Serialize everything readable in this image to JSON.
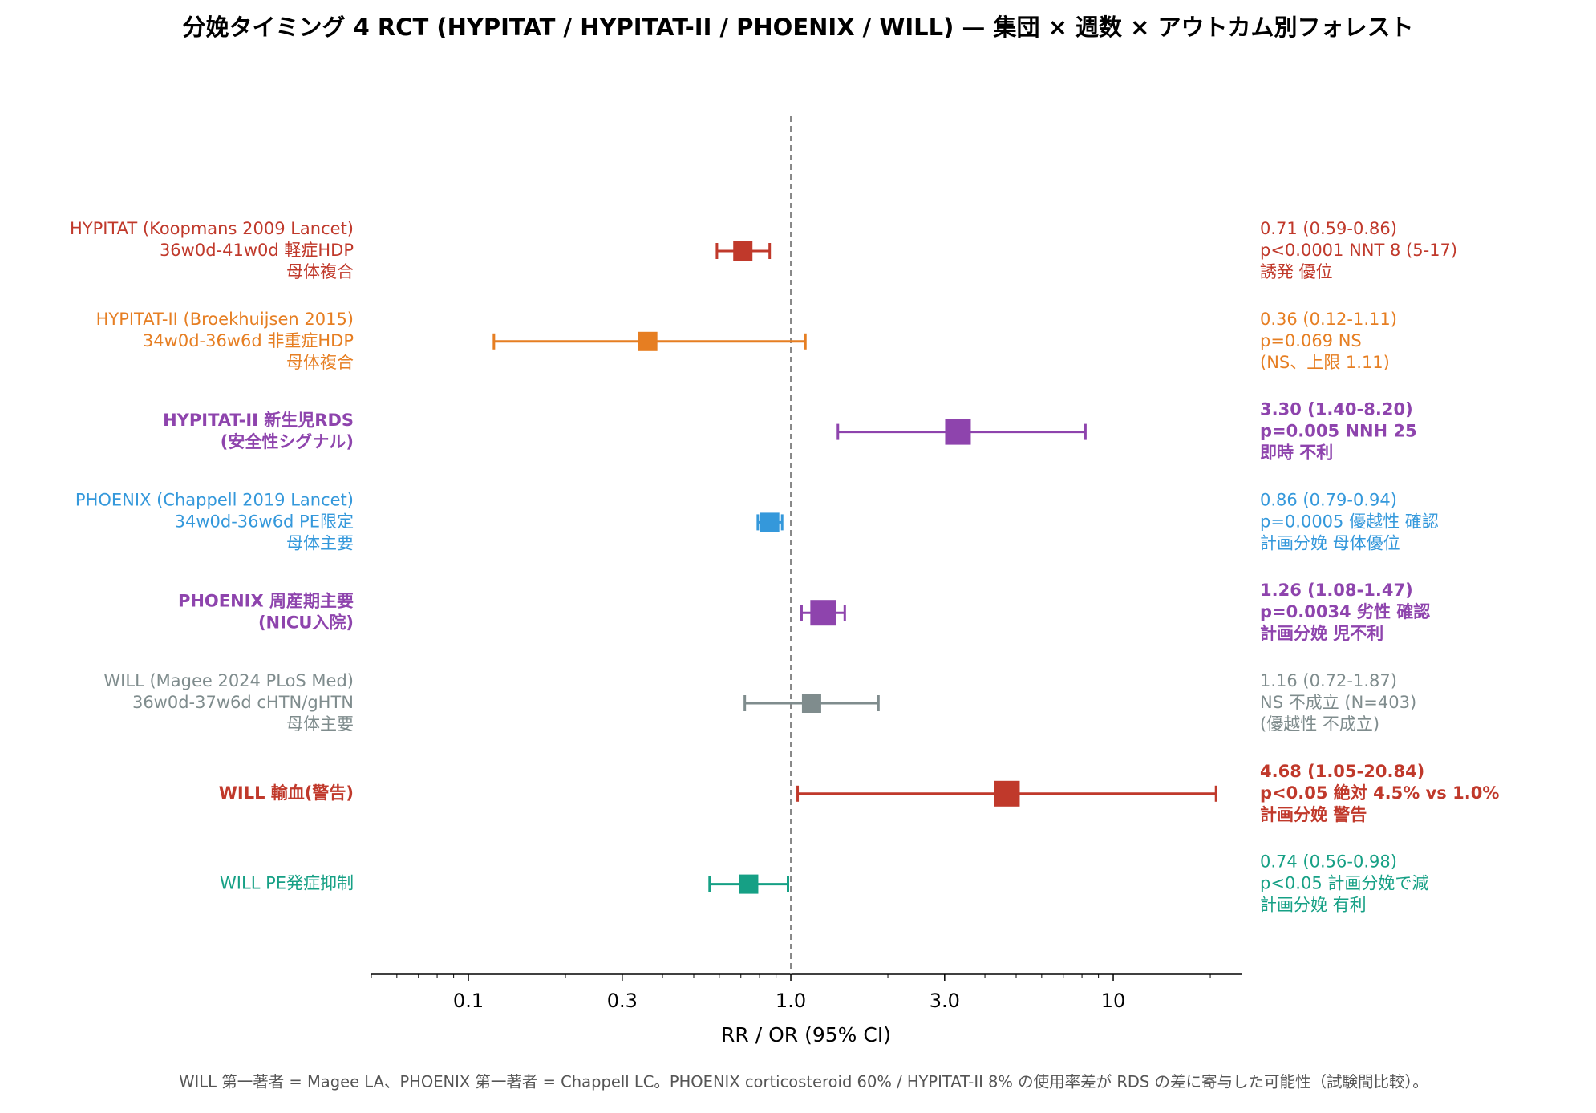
{
  "chart_data": {
    "type": "forest",
    "title": "分娩タイミング 4 RCT (HYPITAT / HYPITAT-II / PHOENIX / WILL) — 集団 × 週数 × アウトカム別フォレスト",
    "x_label": "RR / OR (95% CI)",
    "footnote": "WILL 第一著者 = Magee LA、PHOENIX 第一著者 = Chappell LC。PHOENIX corticosteroid 60% / HYPITAT-II 8% の使用率差が RDS の差に寄与した可能性（試験間比較）。",
    "log_x": true,
    "xlim": [
      0.05,
      25
    ],
    "xticks": [
      0.1,
      0.3,
      {
        "value": 1,
        "label": "1.0"
      },
      {
        "value": 3,
        "label": "3.0"
      },
      10
    ],
    "ref_line": 1,
    "rows": [
      {
        "label": [
          "HYPITAT (Koopmans 2009 Lancet)",
          "36w0d-41w0d 軽症HDP",
          "母体複合"
        ],
        "estimate": 0.71,
        "lo": 0.59,
        "hi": 0.86,
        "color": "#c0392b",
        "emphasis": false,
        "notes": [
          "0.71 (0.59-0.86)",
          "p<0.0001 NNT 8 (5-17)",
          "誘発 優位"
        ]
      },
      {
        "label": [
          "HYPITAT-II (Broekhuijsen 2015)",
          "34w0d-36w6d 非重症HDP",
          "母体複合"
        ],
        "estimate": 0.36,
        "lo": 0.12,
        "hi": 1.11,
        "color": "#e67e22",
        "emphasis": false,
        "notes": [
          "0.36 (0.12-1.11)",
          "p=0.069 NS",
          "(NS、上限 1.11)"
        ]
      },
      {
        "label": [
          "HYPITAT-II 新生児RDS",
          "(安全性シグナル)"
        ],
        "estimate": 3.3,
        "lo": 1.4,
        "hi": 8.2,
        "color": "#8e44ad",
        "emphasis": true,
        "notes": [
          "3.30 (1.40-8.20)",
          "p=0.005 NNH 25",
          "即時 不利"
        ]
      },
      {
        "label": [
          "PHOENIX (Chappell 2019 Lancet)",
          "34w0d-36w6d PE限定",
          "母体主要"
        ],
        "estimate": 0.86,
        "lo": 0.79,
        "hi": 0.94,
        "color": "#3498db",
        "emphasis": false,
        "notes": [
          "0.86 (0.79-0.94)",
          "p=0.0005 優越性 確認",
          "計画分娩 母体優位"
        ]
      },
      {
        "label": [
          "PHOENIX 周産期主要",
          "(NICU入院)"
        ],
        "estimate": 1.26,
        "lo": 1.08,
        "hi": 1.47,
        "color": "#8e44ad",
        "emphasis": true,
        "notes": [
          "1.26 (1.08-1.47)",
          "p=0.0034 劣性 確認",
          "計画分娩 児不利"
        ]
      },
      {
        "label": [
          "WILL (Magee 2024 PLoS Med)",
          "36w0d-37w6d cHTN/gHTN",
          "母体主要"
        ],
        "estimate": 1.16,
        "lo": 0.72,
        "hi": 1.87,
        "color": "#7f8c8d",
        "emphasis": false,
        "notes": [
          "1.16 (0.72-1.87)",
          "NS 不成立 (N=403)",
          "(優越性 不成立)"
        ]
      },
      {
        "label": [
          "WILL 輸血(警告)"
        ],
        "estimate": 4.68,
        "lo": 1.05,
        "hi": 20.84,
        "color": "#c0392b",
        "emphasis": true,
        "notes": [
          "4.68 (1.05-20.84)",
          "p<0.05 絶対 4.5% vs 1.0%",
          "計画分娩 警告"
        ]
      },
      {
        "label": [
          "WILL PE発症抑制"
        ],
        "estimate": 0.74,
        "lo": 0.56,
        "hi": 0.98,
        "color": "#16a085",
        "emphasis": false,
        "notes": [
          "0.74 (0.56-0.98)",
          "p<0.05 計画分娩で減",
          "計画分娩 有利"
        ]
      }
    ]
  }
}
